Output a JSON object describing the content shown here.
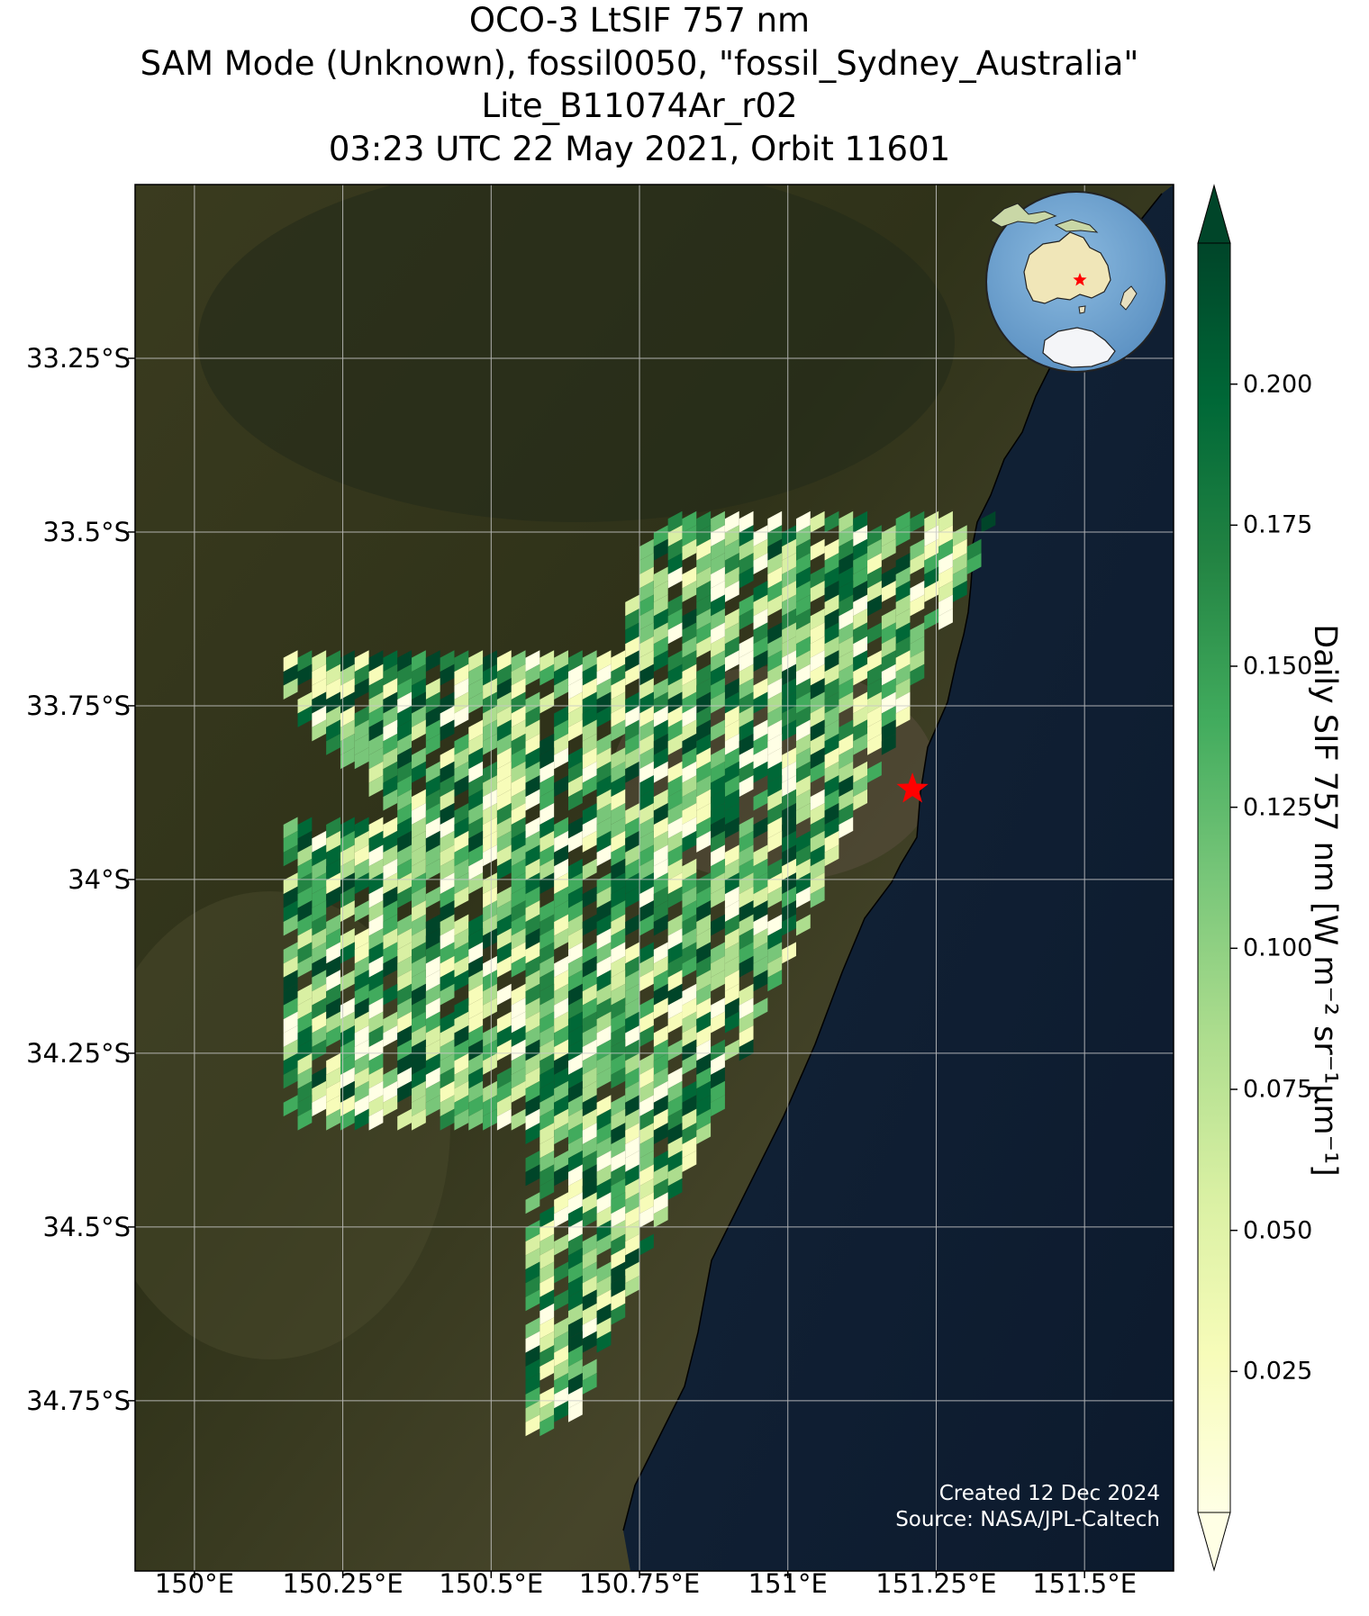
{
  "title": {
    "line1": "OCO-3 LtSIF 757 nm",
    "line2": "SAM Mode (Unknown), fossil0050, \"fossil_Sydney_Australia\"",
    "line3": "Lite_B11074Ar_r02",
    "line4": "03:23 UTC 22 May 2021, Orbit 11601"
  },
  "lat_ticks": [
    "33.25°S",
    "33.5°S",
    "33.75°S",
    "34°S",
    "34.25°S",
    "34.5°S",
    "34.75°S"
  ],
  "lat_values": [
    -33.25,
    -33.5,
    -33.75,
    -34.0,
    -34.25,
    -34.5,
    -34.75
  ],
  "lon_ticks": [
    "150°E",
    "150.25°E",
    "150.5°E",
    "150.75°E",
    "151°E",
    "151.25°E",
    "151.5°E"
  ],
  "lon_values": [
    150.0,
    150.25,
    150.5,
    150.75,
    151.0,
    151.25,
    151.5
  ],
  "map_extent": {
    "lon_min": 149.9,
    "lon_max": 151.65,
    "lat_min": -34.995,
    "lat_max": -33.0
  },
  "target_site": {
    "name": "fossil_Sydney_Australia",
    "lon": 151.21,
    "lat": -33.87,
    "marker_color": "#ff0000"
  },
  "colorbar": {
    "label": "Daily SIF 757 nm [W m⁻² sr⁻¹μm⁻¹]",
    "ticks": [
      "0.025",
      "0.050",
      "0.075",
      "0.100",
      "0.125",
      "0.150",
      "0.175",
      "0.200"
    ],
    "tick_values": [
      0.025,
      0.05,
      0.075,
      0.1,
      0.125,
      0.15,
      0.175,
      0.2
    ],
    "range": [
      0.0,
      0.225
    ],
    "extend": "both",
    "colormap": "YlGn",
    "colors": [
      "#ffffe5",
      "#f7fcb9",
      "#d9f0a3",
      "#addd8e",
      "#78c679",
      "#41ab5d",
      "#238443",
      "#006837",
      "#004529"
    ]
  },
  "colors": {
    "land": "#3c3a20",
    "ocean": "#0f1e33",
    "gridline": "#c8c8c8"
  },
  "inset": {
    "content": "globe-locator",
    "region": "Australia"
  },
  "credit": {
    "line1": "Created 12 Dec 2024",
    "line2": "Source: NASA/JPL-Caltech"
  }
}
